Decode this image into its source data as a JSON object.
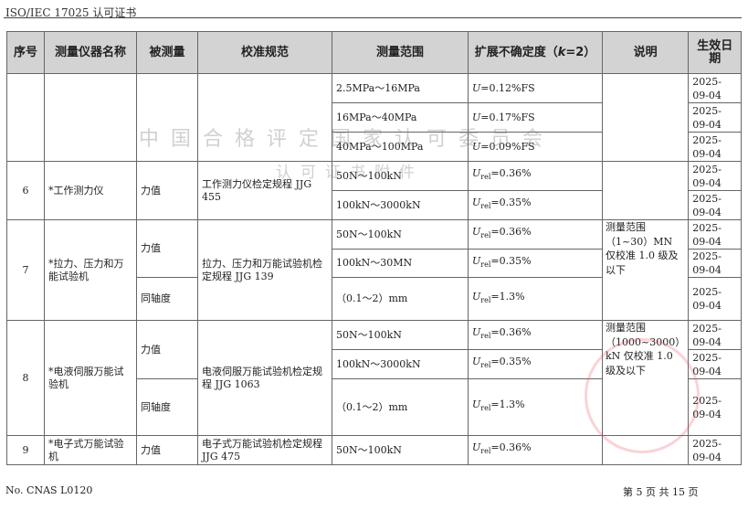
{
  "header": {
    "title": "ISO/IEC 17025 认可证书"
  },
  "table": {
    "columns": [
      "序号",
      "测量仪器名称",
      "被测量",
      "校准规范",
      "测量范围",
      "扩展不确定度（",
      "k",
      "=2）",
      "说明",
      "生效日期"
    ],
    "group1": {
      "ranges": [
        "2.5MPa～16MPa",
        "16MPa～40MPa",
        "40MPa～100MPa"
      ],
      "uncert": [
        "0.12%FS",
        "0.17%FS",
        "0.09%FS"
      ],
      "dates": [
        "2025-09-04",
        "2025-09-04",
        "2025-09-04"
      ]
    },
    "row6": {
      "no": "6",
      "name": "*工作测力仪",
      "quantity": "力值",
      "spec": "工作测力仪检定规程 JJG 455",
      "ranges": [
        "50N～100kN",
        "100kN～3000kN"
      ],
      "uncert": [
        "=0.36%",
        "=0.35%"
      ],
      "dates": [
        "2025-09-04",
        "2025-09-04"
      ]
    },
    "row7": {
      "no": "7",
      "name": "*拉力、压力和万能试验机",
      "quantities": [
        "力值",
        "同轴度"
      ],
      "spec": "拉力、压力和万能试验机检定规程 JJG 139",
      "ranges": [
        "50N～100kN",
        "100kN～30MN",
        "（0.1～2）mm"
      ],
      "uncert": [
        "=0.36%",
        "=0.35%",
        "=1.3%"
      ],
      "note": "测量范围（1~30）MN 仅校准 1.0 级及以下",
      "dates": [
        "2025-09-04",
        "2025-09-04",
        "2025-09-04"
      ]
    },
    "row8": {
      "no": "8",
      "name": "*电液伺服万能试验机",
      "quantities": [
        "力值",
        "同轴度"
      ],
      "spec": "电液伺服万能试验机检定规程 JJG 1063",
      "ranges": [
        "50N～100kN",
        "100kN～3000kN",
        "（0.1～2）mm"
      ],
      "uncert": [
        "=0.36%",
        "=0.35%",
        "=1.3%"
      ],
      "note": "测量范围（1000~3000）kN 仅校准 1.0 级及以下",
      "dates": [
        "2025-09-04",
        "2025-09-04",
        "2025-09-04"
      ]
    },
    "row9": {
      "no": "9",
      "name": "*电子式万能试验机",
      "quantity": "力值",
      "spec": "电子式万能试验机检定规程 JJG 475",
      "range": "50N～100kN",
      "uncert": "=0.36%",
      "date": "2025-09-04"
    },
    "symbol_U": "U",
    "symbol_rel": "rel"
  },
  "watermark": {
    "line1": "中国合格评定国家认可委员会",
    "line2": "认可证书附件",
    "logo": "ilac-MRA CNAS",
    "seal": "中国合格评定国家认可委员会 认可证书专用章"
  },
  "footer": {
    "doc_no": "No. CNAS L0120",
    "page": "第 5 页 共 15 页"
  }
}
